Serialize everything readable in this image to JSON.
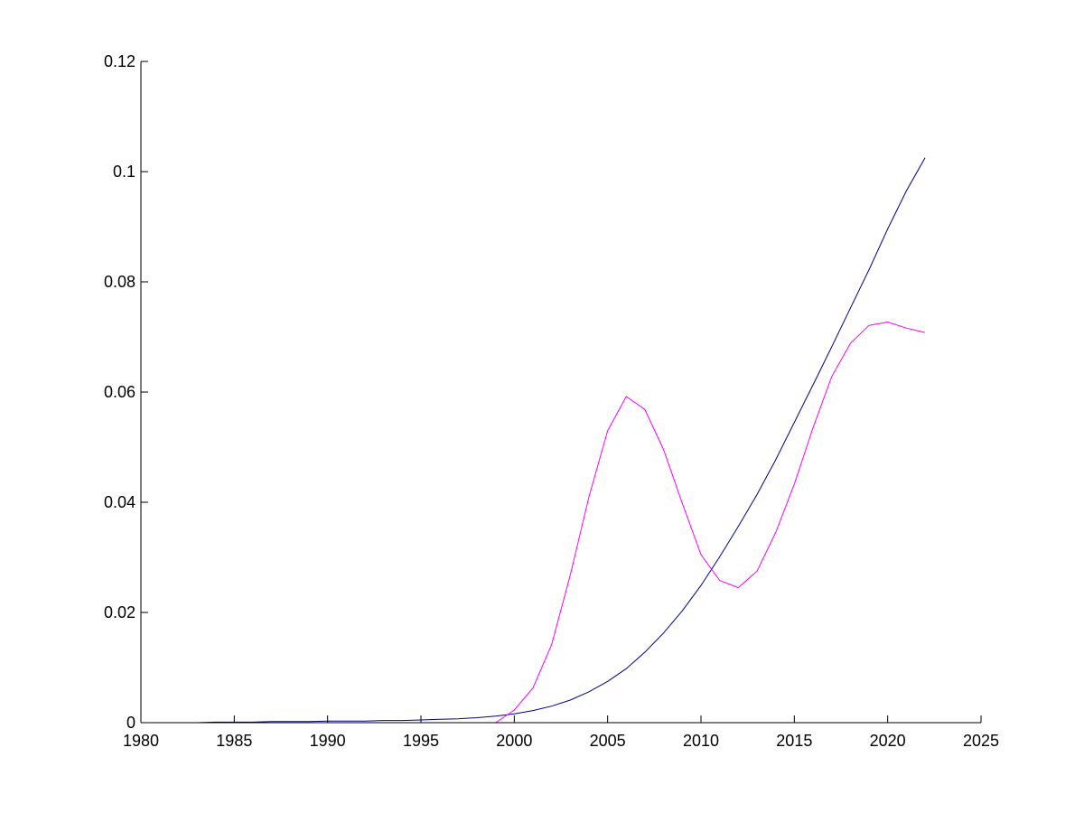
{
  "chart_data": {
    "type": "line",
    "title": "",
    "xlabel": "",
    "ylabel": "",
    "xlim": [
      1980,
      2025
    ],
    "ylim": [
      0,
      0.12
    ],
    "xticks": [
      1980,
      1985,
      1990,
      1995,
      2000,
      2005,
      2010,
      2015,
      2020,
      2025
    ],
    "xtick_labels": [
      "1980",
      "1985",
      "1990",
      "1995",
      "2000",
      "2005",
      "2010",
      "2015",
      "2020",
      "2025"
    ],
    "yticks": [
      0,
      0.02,
      0.04,
      0.06,
      0.08,
      0.1,
      0.12
    ],
    "ytick_labels": [
      "0",
      "0.02",
      "0.04",
      "0.06",
      "0.08",
      "0.1",
      "0.12"
    ],
    "grid": false,
    "legend": "none",
    "series": [
      {
        "color": "#00008b",
        "x": [
          1980,
          1981,
          1982,
          1983,
          1984,
          1985,
          1986,
          1987,
          1988,
          1989,
          1990,
          1991,
          1992,
          1993,
          1994,
          1995,
          1996,
          1997,
          1998,
          1999,
          2000,
          2001,
          2002,
          2003,
          2004,
          2005,
          2006,
          2007,
          2008,
          2009,
          2010,
          2011,
          2012,
          2013,
          2014,
          2015,
          2016,
          2017,
          2018,
          2019,
          2020,
          2021,
          2022
        ],
        "y": [
          0.0,
          0.0,
          0.0,
          0.0,
          0.0001,
          0.0001,
          0.0001,
          0.0002,
          0.0002,
          0.0002,
          0.0003,
          0.0003,
          0.0003,
          0.0004,
          0.0004,
          0.0005,
          0.0006,
          0.0007,
          0.0009,
          0.0012,
          0.0016,
          0.0022,
          0.003,
          0.0041,
          0.0056,
          0.0075,
          0.0098,
          0.0128,
          0.0163,
          0.0203,
          0.0249,
          0.0301,
          0.0356,
          0.0414,
          0.0477,
          0.0545,
          0.0613,
          0.0682,
          0.0752,
          0.0822,
          0.0896,
          0.0965,
          0.1025
        ]
      },
      {
        "color": "#ff00ff",
        "x": [
          1980,
          1981,
          1982,
          1983,
          1984,
          1985,
          1986,
          1987,
          1988,
          1989,
          1990,
          1991,
          1992,
          1993,
          1994,
          1995,
          1996,
          1997,
          1998,
          1999,
          2000,
          2001,
          2002,
          2003,
          2004,
          2005,
          2006,
          2007,
          2008,
          2009,
          2010,
          2011,
          2012,
          2013,
          2014,
          2015,
          2016,
          2017,
          2018,
          2019,
          2020,
          2021,
          2022
        ],
        "y": [
          0.0,
          0.0,
          0.0,
          0.0,
          0.0,
          0.0,
          0.0,
          0.0,
          0.0,
          0.0,
          0.0,
          0.0,
          0.0,
          0.0,
          0.0,
          0.0,
          0.0,
          0.0,
          0.0,
          0.0,
          0.0023,
          0.0063,
          0.0142,
          0.0268,
          0.041,
          0.053,
          0.0592,
          0.0568,
          0.0495,
          0.0398,
          0.0305,
          0.0258,
          0.0245,
          0.0275,
          0.0345,
          0.0433,
          0.0535,
          0.0628,
          0.0688,
          0.0721,
          0.0727,
          0.0716,
          0.0708
        ]
      }
    ]
  }
}
